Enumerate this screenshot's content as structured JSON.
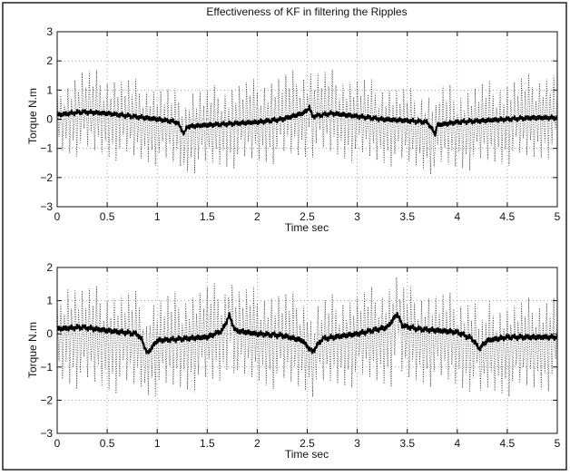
{
  "chart_data": [
    {
      "type": "line",
      "title": "Effectiveness of KF in filtering the Ripples",
      "xlabel": "Time sec",
      "ylabel": "Torque N.m",
      "xlim": [
        0,
        5
      ],
      "ylim": [
        -3,
        3
      ],
      "xticks": [
        "0",
        "0.5",
        "1",
        "1.5",
        "2",
        "2.5",
        "3",
        "3.5",
        "4",
        "4.5",
        "5"
      ],
      "yticks": [
        "3",
        "2",
        "1",
        "0",
        "-1",
        "-2",
        "-3"
      ],
      "grid": true,
      "series": [
        {
          "style": "dotted",
          "color": "#222222",
          "x": [
            0,
            0.25,
            0.5,
            0.75,
            1.0,
            1.25,
            1.27,
            1.3,
            1.5,
            1.75,
            2.0,
            2.25,
            2.5,
            2.52,
            2.55,
            2.75,
            3.0,
            3.25,
            3.5,
            3.75,
            3.78,
            3.8,
            4.0,
            4.25,
            4.5,
            4.75,
            5.0
          ],
          "y_upper": [
            1.1,
            1.8,
            1.6,
            1.4,
            1.2,
            1.0,
            0.2,
            1.2,
            1.1,
            1.3,
            1.4,
            1.6,
            1.8,
            1.9,
            1.8,
            1.7,
            1.5,
            1.3,
            1.1,
            1.0,
            0.4,
            1.3,
            1.1,
            1.3,
            1.4,
            1.6,
            1.7
          ],
          "y_lower": [
            -1.2,
            -1.3,
            -1.4,
            -1.5,
            -1.6,
            -1.8,
            -2.1,
            -1.9,
            -1.8,
            -1.7,
            -1.6,
            -1.5,
            -1.4,
            -0.7,
            -1.3,
            -1.4,
            -1.5,
            -1.6,
            -1.7,
            -1.9,
            -2.2,
            -1.9,
            -1.8,
            -1.7,
            -1.6,
            -1.5,
            -1.3
          ]
        },
        {
          "style": "solid",
          "color": "#000000",
          "x": [
            0,
            0.25,
            0.5,
            0.75,
            1.0,
            1.2,
            1.27,
            1.3,
            1.5,
            1.75,
            2.0,
            2.25,
            2.45,
            2.5,
            2.52,
            2.55,
            2.75,
            3.0,
            3.25,
            3.5,
            3.7,
            3.78,
            3.8,
            4.0,
            4.25,
            4.5,
            4.75,
            5.0
          ],
          "y": [
            0.15,
            0.25,
            0.2,
            0.1,
            0.0,
            -0.1,
            -0.5,
            -0.25,
            -0.2,
            -0.15,
            -0.1,
            0.0,
            0.2,
            0.3,
            0.45,
            0.1,
            0.2,
            0.1,
            0.0,
            -0.05,
            -0.1,
            -0.5,
            -0.2,
            -0.1,
            -0.05,
            0.0,
            0.05,
            0.05
          ]
        }
      ]
    },
    {
      "type": "line",
      "title": "",
      "xlabel": "Time sec",
      "ylabel": "Torque N.m",
      "xlim": [
        0,
        5
      ],
      "ylim": [
        -3,
        2
      ],
      "xticks": [
        "0",
        "0.5",
        "1",
        "1.5",
        "2",
        "2.5",
        "3",
        "3.5",
        "4",
        "4.5",
        "5"
      ],
      "yticks": [
        "2",
        "1",
        "0",
        "-1",
        "-2",
        "-3"
      ],
      "grid": true,
      "series": [
        {
          "style": "dotted",
          "color": "#222222",
          "x": [
            0,
            0.1,
            0.25,
            0.5,
            0.75,
            0.85,
            0.88,
            0.92,
            1.0,
            1.25,
            1.5,
            1.68,
            1.72,
            1.8,
            2.0,
            2.25,
            2.5,
            2.55,
            2.6,
            2.75,
            3.0,
            3.25,
            3.35,
            3.4,
            3.45,
            3.6,
            3.8,
            4.0,
            4.2,
            4.23,
            4.3,
            4.5,
            4.75,
            5.0
          ],
          "y_upper": [
            1.1,
            1.8,
            1.5,
            1.4,
            1.3,
            1.3,
            0.3,
            1.1,
            1.2,
            1.3,
            1.5,
            1.6,
            1.9,
            1.5,
            1.4,
            1.3,
            1.2,
            0.4,
            1.0,
            1.2,
            1.3,
            1.5,
            1.7,
            1.9,
            1.5,
            1.4,
            1.3,
            1.2,
            1.1,
            0.3,
            1.0,
            1.0,
            1.1,
            1.3
          ],
          "y_lower": [
            -1.5,
            -1.6,
            -1.7,
            -1.8,
            -1.8,
            -1.8,
            -2.1,
            -1.9,
            -1.9,
            -1.8,
            -1.7,
            -1.6,
            -0.6,
            -1.6,
            -1.6,
            -1.7,
            -1.8,
            -1.9,
            -1.8,
            -1.7,
            -1.6,
            -1.6,
            -1.6,
            -0.6,
            -1.6,
            -1.6,
            -1.6,
            -1.7,
            -1.8,
            -2.0,
            -1.9,
            -1.9,
            -1.8,
            -1.7
          ]
        },
        {
          "style": "solid",
          "color": "#000000",
          "x": [
            0,
            0.25,
            0.5,
            0.8,
            0.85,
            0.9,
            1.0,
            1.25,
            1.5,
            1.65,
            1.72,
            1.78,
            2.0,
            2.25,
            2.45,
            2.55,
            2.65,
            3.0,
            3.3,
            3.4,
            3.45,
            3.6,
            4.0,
            4.15,
            4.22,
            4.3,
            4.5,
            4.75,
            5.0
          ],
          "y": [
            0.15,
            0.2,
            0.1,
            0.0,
            -0.2,
            -0.6,
            -0.2,
            -0.15,
            -0.1,
            0.1,
            0.55,
            0.1,
            0.0,
            -0.05,
            -0.2,
            -0.55,
            -0.15,
            0.0,
            0.2,
            0.6,
            0.25,
            0.15,
            0.05,
            -0.15,
            -0.45,
            -0.2,
            -0.1,
            -0.1,
            -0.1
          ]
        }
      ]
    }
  ]
}
